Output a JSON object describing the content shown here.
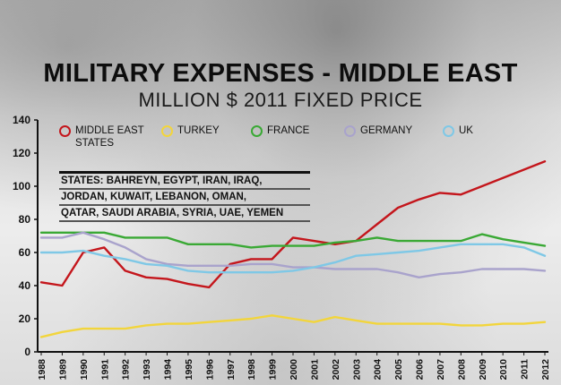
{
  "title": "MILITARY EXPENSES - MIDDLE EAST",
  "subtitle": "MILLION $ 2011 FIXED PRICE",
  "states_note": {
    "label": "STATES:",
    "lines": [
      "BAHREYN, EGYPT, IRAN, IRAQ,",
      "JORDAN, KUWAIT, LEBANON, OMAN,",
      "QATAR, SAUDI ARABIA, SYRIA, UAE, YEMEN"
    ]
  },
  "chart_data": {
    "type": "line",
    "x": [
      "1988",
      "1989",
      "1990",
      "1991",
      "1992",
      "1993",
      "1994",
      "1995",
      "1996",
      "1997",
      "1998",
      "1999",
      "2000",
      "2001",
      "2002",
      "2003",
      "2004",
      "2005",
      "2006",
      "2007",
      "2008",
      "2009",
      "2010",
      "2011",
      "2012"
    ],
    "yticks": [
      "0",
      "20",
      "40",
      "60",
      "80",
      "100",
      "120",
      "140"
    ],
    "ylim": [
      0,
      140
    ],
    "series": [
      {
        "name": "MIDDLE EAST STATES",
        "color": "#c4161c",
        "values": [
          42,
          40,
          60,
          63,
          49,
          45,
          44,
          41,
          39,
          53,
          56,
          56,
          69,
          67,
          65,
          67,
          77,
          87,
          92,
          96,
          95,
          100,
          105,
          110,
          115
        ]
      },
      {
        "name": "TURKEY",
        "color": "#f2d53c",
        "values": [
          9,
          12,
          14,
          14,
          14,
          16,
          17,
          17,
          18,
          19,
          20,
          22,
          20,
          18,
          21,
          19,
          17,
          17,
          17,
          17,
          16,
          16,
          17,
          17,
          18
        ]
      },
      {
        "name": "FRANCE",
        "color": "#3aa935",
        "values": [
          72,
          72,
          72,
          72,
          69,
          69,
          69,
          65,
          65,
          65,
          63,
          64,
          64,
          64,
          66,
          67,
          69,
          67,
          67,
          67,
          67,
          71,
          68,
          66,
          64
        ]
      },
      {
        "name": "GERMANY",
        "color": "#a9a3cc",
        "values": [
          69,
          69,
          72,
          68,
          63,
          56,
          53,
          52,
          52,
          52,
          53,
          53,
          51,
          51,
          50,
          50,
          50,
          48,
          45,
          47,
          48,
          50,
          50,
          50,
          49
        ]
      },
      {
        "name": "UK",
        "color": "#7fc8e6",
        "values": [
          60,
          60,
          61,
          58,
          56,
          53,
          52,
          49,
          48,
          48,
          48,
          48,
          49,
          51,
          54,
          58,
          59,
          60,
          61,
          63,
          65,
          65,
          65,
          63,
          58
        ]
      }
    ],
    "grid": false,
    "legend_position": "top"
  }
}
